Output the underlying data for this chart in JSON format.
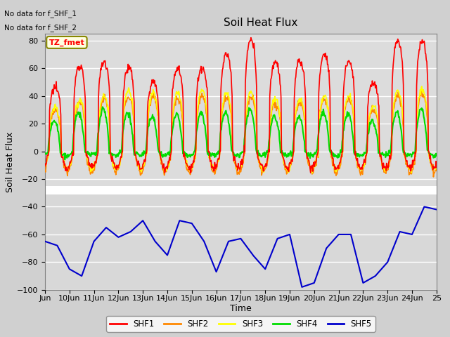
{
  "title": "Soil Heat Flux",
  "xlabel": "Time",
  "ylabel": "Soil Heat Flux",
  "ylim": [
    -100,
    85
  ],
  "yticks": [
    -100,
    -80,
    -60,
    -40,
    -20,
    0,
    20,
    40,
    60,
    80
  ],
  "xlim_days": [
    9,
    25
  ],
  "xtick_labels": [
    "Jun",
    "10Jun",
    "11Jun",
    "12Jun",
    "13Jun",
    "14Jun",
    "15Jun",
    "16Jun",
    "17Jun",
    "18Jun",
    "19Jun",
    "20Jun",
    "21Jun",
    "22Jun",
    "23Jun",
    "24Jun",
    "25"
  ],
  "bg_color": "#d0d0d0",
  "plot_bg_upper": "#dcdcdc",
  "plot_bg_lower": "#dcdcdc",
  "no_data_text1": "No data for f_SHF_1",
  "no_data_text2": "No data for f_SHF_2",
  "tz_label": "TZ_fmet",
  "line_colors": {
    "SHF1": "#ff0000",
    "SHF2": "#ff8800",
    "SHF3": "#ffff00",
    "SHF4": "#00dd00",
    "SHF5": "#0000cc"
  },
  "legend_labels": [
    "SHF1",
    "SHF2",
    "SHF3",
    "SHF4",
    "SHF5"
  ],
  "separator_y": -28,
  "title_fontsize": 11,
  "tick_fontsize": 8,
  "label_fontsize": 9
}
